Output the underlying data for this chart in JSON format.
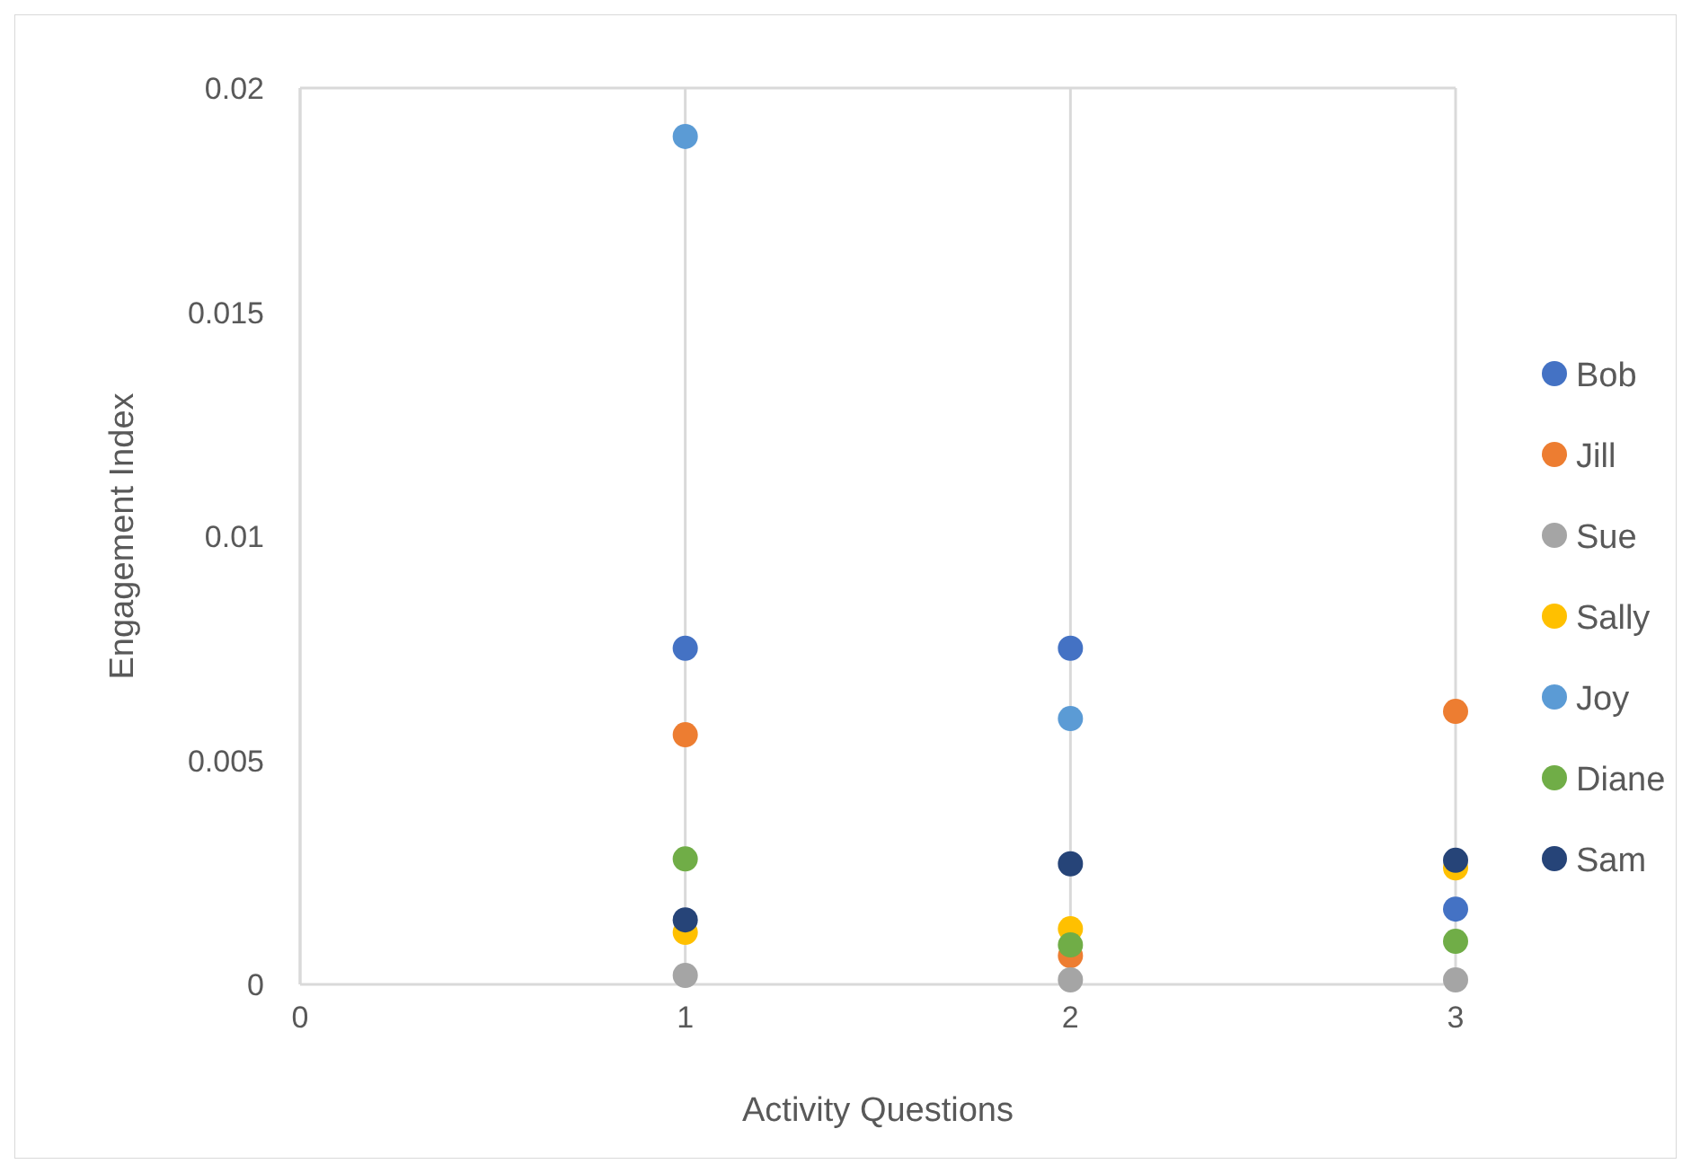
{
  "chart_data": {
    "type": "scatter",
    "xlabel": "Activity Questions",
    "ylabel": "Engagement Index",
    "xlim": [
      0,
      3
    ],
    "xticks": [
      0,
      1,
      2,
      3
    ],
    "ylim": [
      0,
      0.02
    ],
    "yticks": [
      0,
      0.005,
      0.01,
      0.015,
      0.02
    ],
    "grid": "x",
    "legend": "right",
    "marker": "circle",
    "x": [
      1,
      2,
      3
    ],
    "series": [
      {
        "name": "Bob",
        "color": "#4472c4",
        "values": [
          0.0075,
          0.0075,
          0.00168
        ]
      },
      {
        "name": "Jill",
        "color": "#ed7d31",
        "values": [
          0.00557,
          0.00064,
          0.00609
        ]
      },
      {
        "name": "Sue",
        "color": "#a5a5a5",
        "values": [
          0.0002,
          0.0001,
          0.0001
        ]
      },
      {
        "name": "Sally",
        "color": "#ffc000",
        "values": [
          0.00116,
          0.00124,
          0.0026
        ]
      },
      {
        "name": "Joy",
        "color": "#5b9bd5",
        "values": [
          0.01892,
          0.00593,
          null
        ]
      },
      {
        "name": "Diane",
        "color": "#70ad47",
        "values": [
          0.0028,
          0.00088,
          0.00096
        ]
      },
      {
        "name": "Sam",
        "color": "#264478",
        "values": [
          0.00144,
          0.00269,
          0.00277
        ]
      }
    ]
  }
}
